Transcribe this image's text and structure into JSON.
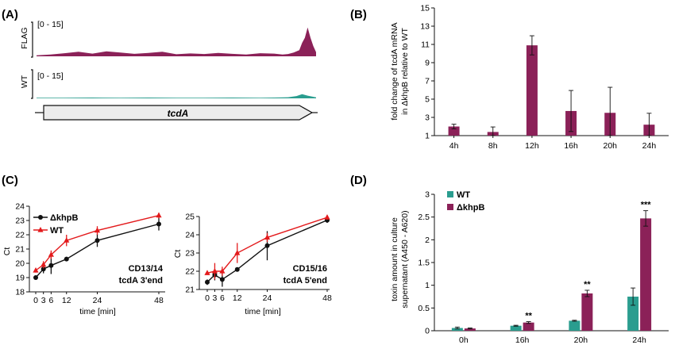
{
  "colors": {
    "magenta": "#8b2158",
    "teal": "#2a9d8f",
    "red": "#e31a1c",
    "black": "#111111",
    "gray": "#555555"
  },
  "panel_labels": {
    "a": "(A)",
    "b": "(B)",
    "c": "(C)",
    "d": "(D)"
  },
  "chart_data": [
    {
      "type": "area",
      "panel": "A",
      "tracks": [
        {
          "name": "FLAG",
          "range_label": "[0 - 15]",
          "color": "#8b2158",
          "x": [
            0,
            0.05,
            0.1,
            0.15,
            0.2,
            0.25,
            0.3,
            0.35,
            0.4,
            0.45,
            0.5,
            0.55,
            0.6,
            0.65,
            0.7,
            0.75,
            0.8,
            0.85,
            0.88,
            0.9,
            0.92,
            0.94,
            0.95,
            0.96,
            0.97,
            0.98,
            0.99,
            1.0
          ],
          "values": [
            0.5,
            0.9,
            1.5,
            2.2,
            1.3,
            2.4,
            1.8,
            1.2,
            1.6,
            2.2,
            1.0,
            1.4,
            1.1,
            1.6,
            1.2,
            0.9,
            1.5,
            1.3,
            0.9,
            1.1,
            1.8,
            3.0,
            6.5,
            9.0,
            14.0,
            9.0,
            5.0,
            2.0
          ]
        },
        {
          "name": "WT",
          "range_label": "[0 - 15]",
          "color": "#2a9d8f",
          "x": [
            0,
            0.1,
            0.2,
            0.3,
            0.4,
            0.5,
            0.6,
            0.7,
            0.8,
            0.85,
            0.9,
            0.93,
            0.95,
            0.97,
            1.0
          ],
          "values": [
            0.3,
            0.3,
            0.4,
            0.3,
            0.4,
            0.3,
            0.3,
            0.4,
            0.3,
            0.4,
            0.6,
            1.2,
            2.2,
            1.4,
            0.5
          ]
        }
      ],
      "gene_label": "tcdA"
    },
    {
      "type": "bar",
      "panel": "B",
      "categories": [
        "4h",
        "8h",
        "12h",
        "16h",
        "20h",
        "24h"
      ],
      "values": [
        2.0,
        1.4,
        10.9,
        3.7,
        3.5,
        2.2
      ],
      "errors": [
        0.25,
        0.55,
        1.05,
        2.25,
        2.8,
        1.25
      ],
      "ylabel_lines": [
        "fold change of tcdA mRNA",
        "in ΔkhpB relative to WT"
      ],
      "ylim": [
        1,
        15
      ],
      "yticks": [
        1,
        3,
        5,
        7,
        9,
        11,
        13,
        15
      ],
      "color": "#8b2158"
    },
    {
      "type": "line",
      "panel": "C-left",
      "x": [
        0,
        3,
        6,
        12,
        24,
        48
      ],
      "xticks": [
        0,
        3,
        6,
        12,
        24,
        48
      ],
      "series": [
        {
          "name": "ΔkhpB",
          "values": [
            19.0,
            19.6,
            19.85,
            20.3,
            21.6,
            22.75
          ],
          "errors": [
            0.15,
            0.3,
            0.6,
            0.15,
            0.45,
            0.45
          ],
          "color": "#111111",
          "marker": "circle"
        },
        {
          "name": "WT",
          "values": [
            19.5,
            19.9,
            20.6,
            21.6,
            22.3,
            23.35
          ],
          "errors": [
            0.15,
            0.25,
            0.3,
            0.4,
            0.3,
            0.2
          ],
          "color": "#e31a1c",
          "marker": "triangle"
        }
      ],
      "ylim": [
        18,
        24
      ],
      "yticks": [
        18,
        19,
        20,
        21,
        22,
        23,
        24
      ],
      "xlabel": "time [min]",
      "ylabel": "Ct",
      "annotation": [
        "CD13/14",
        "tcdA 3'end"
      ]
    },
    {
      "type": "line",
      "panel": "C-right",
      "x": [
        0,
        3,
        6,
        12,
        24,
        48
      ],
      "xticks": [
        0,
        3,
        6,
        12,
        24,
        48
      ],
      "series": [
        {
          "name": "ΔkhpB",
          "values": [
            21.4,
            21.8,
            21.55,
            22.1,
            23.4,
            24.8
          ],
          "errors": [
            0.15,
            0.3,
            0.4,
            0.1,
            0.8,
            0.15
          ],
          "color": "#111111",
          "marker": "circle"
        },
        {
          "name": "WT",
          "values": [
            21.9,
            22.0,
            22.0,
            23.0,
            23.85,
            24.95
          ],
          "errors": [
            0.1,
            0.45,
            0.25,
            0.55,
            0.25,
            0.12
          ],
          "color": "#e31a1c",
          "marker": "triangle"
        }
      ],
      "ylim": [
        21,
        25
      ],
      "yticks": [
        21,
        22,
        23,
        24,
        25
      ],
      "xlabel": "time [min]",
      "ylabel": "Ct",
      "annotation": [
        "CD15/16",
        "tcdA 5'end"
      ]
    },
    {
      "type": "bar",
      "panel": "D",
      "categories": [
        "0h",
        "16h",
        "20h",
        "24h"
      ],
      "series": [
        {
          "name": "WT",
          "values": [
            0.06,
            0.11,
            0.22,
            0.75
          ],
          "errors": [
            0.02,
            0.01,
            0.01,
            0.19
          ],
          "color": "#2a9d8f"
        },
        {
          "name": "ΔkhpB",
          "values": [
            0.05,
            0.18,
            0.82,
            2.47
          ],
          "errors": [
            0.01,
            0.02,
            0.07,
            0.17
          ],
          "color": "#8b2158"
        }
      ],
      "significance": [
        "",
        "**",
        "**",
        "***"
      ],
      "ylim": [
        0,
        3
      ],
      "yticks": [
        "0",
        "0.5",
        "1",
        "1.5",
        "2",
        "2.5",
        "3"
      ],
      "ylabel_lines": [
        "toxin amount in culture",
        "supernatant (A450 - A620)"
      ]
    }
  ]
}
